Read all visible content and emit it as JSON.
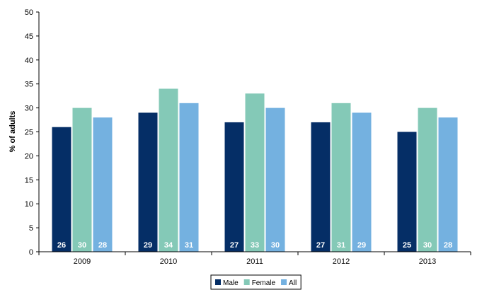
{
  "chart_data": {
    "type": "bar",
    "title": "",
    "xlabel": "",
    "ylabel": "% of adults",
    "categories": [
      "2009",
      "2010",
      "2011",
      "2012",
      "2013"
    ],
    "series": [
      {
        "name": "Male",
        "values": [
          26,
          29,
          27,
          27,
          25
        ],
        "color": "#052e66"
      },
      {
        "name": "Female",
        "values": [
          30,
          34,
          33,
          31,
          30
        ],
        "color": "#84c9b7"
      },
      {
        "name": "All",
        "values": [
          28,
          31,
          30,
          29,
          28
        ],
        "color": "#74b1e0"
      }
    ],
    "ylim": [
      0,
      50
    ],
    "yticks": [
      0,
      5,
      10,
      15,
      20,
      25,
      30,
      35,
      40,
      45,
      50
    ],
    "grid": false,
    "legend_position": "bottom-right",
    "data_labels": "inside-bottom"
  }
}
